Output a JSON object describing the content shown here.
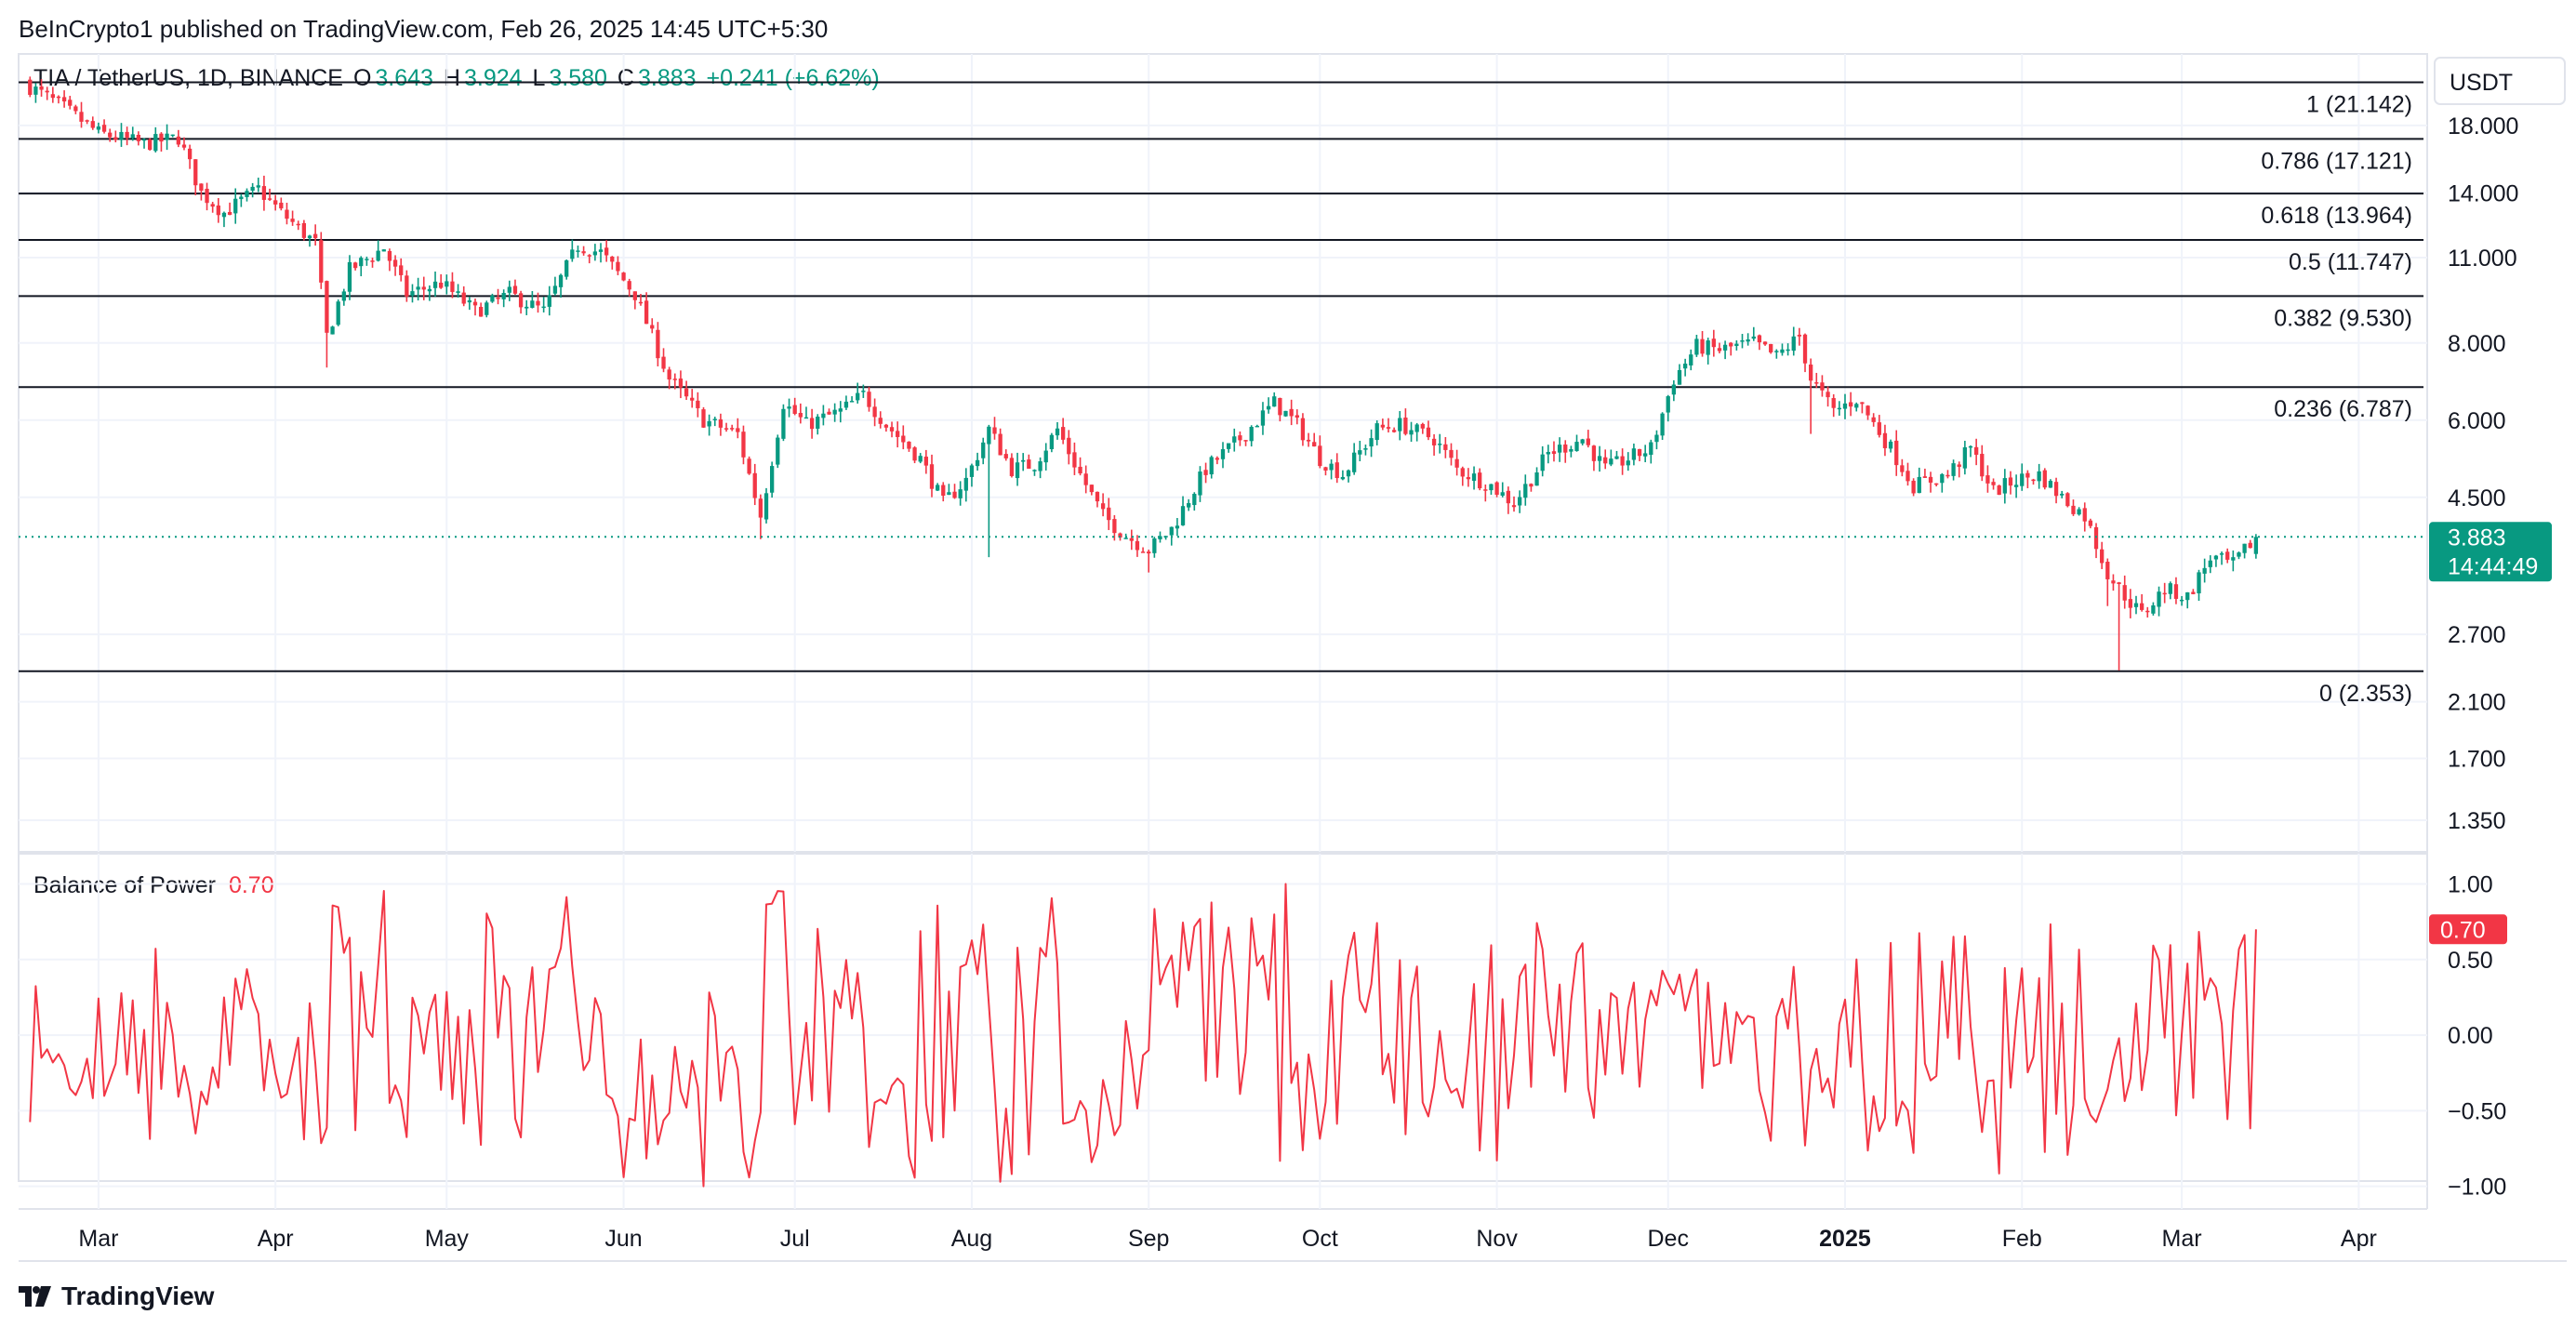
{
  "header": {
    "published": "BeInCrypto1 published on TradingView.com, Feb 26, 2025 14:45 UTC+5:30"
  },
  "legend": {
    "symbol": "TIA / TetherUS, 1D, BINANCE",
    "o_label": "O",
    "o_value": "3.643",
    "h_label": "H",
    "h_value": "3.924",
    "l_label": "L",
    "l_value": "3.580",
    "c_label": "C",
    "c_value": "3.883",
    "change": "+0.241 (+6.62%)"
  },
  "currency": "USDT",
  "last_price": {
    "value": "3.883",
    "time": "14:44:49"
  },
  "indicator": {
    "name": "Balance of Power",
    "value": "0.70"
  },
  "brand": {
    "name": "TradingView"
  },
  "colors": {
    "up": "#089981",
    "down": "#f23645",
    "bop": "#f23645",
    "text": "#131722",
    "grid": "#f0f3fa"
  },
  "chart_data": [
    {
      "type": "candlestick",
      "title": "TIA / TetherUS, 1D, BINANCE",
      "y_scale": "log",
      "ylim": [
        1.2,
        23.5
      ],
      "y_ticks": [
        {
          "value": 18.0,
          "label": "18.000"
        },
        {
          "value": 14.0,
          "label": "14.000"
        },
        {
          "value": 11.0,
          "label": "11.000"
        },
        {
          "value": 8.0,
          "label": "8.000"
        },
        {
          "value": 6.0,
          "label": "6.000"
        },
        {
          "value": 4.5,
          "label": "4.500"
        },
        {
          "value": 2.7,
          "label": "2.700"
        },
        {
          "value": 2.1,
          "label": "2.100"
        },
        {
          "value": 1.7,
          "label": "1.700"
        },
        {
          "value": 1.35,
          "label": "1.350"
        }
      ],
      "x_ticks": [
        {
          "label": "Mar",
          "day": 12
        },
        {
          "label": "Apr",
          "day": 43
        },
        {
          "label": "May",
          "day": 73
        },
        {
          "label": "Jun",
          "day": 104
        },
        {
          "label": "Jul",
          "day": 134
        },
        {
          "label": "Aug",
          "day": 165
        },
        {
          "label": "Sep",
          "day": 196
        },
        {
          "label": "Oct",
          "day": 226
        },
        {
          "label": "Nov",
          "day": 257
        },
        {
          "label": "Dec",
          "day": 287
        },
        {
          "label": "2025",
          "day": 318,
          "bold": true
        },
        {
          "label": "Feb",
          "day": 349
        },
        {
          "label": "Mar",
          "day": 377
        },
        {
          "label": "Apr",
          "day": 408
        }
      ],
      "fib_levels": [
        {
          "ratio": "1",
          "price": 21.142,
          "label": "1 (21.142)"
        },
        {
          "ratio": "0.786",
          "price": 17.121,
          "label": "0.786 (17.121)"
        },
        {
          "ratio": "0.618",
          "price": 13.964,
          "label": "0.618 (13.964)"
        },
        {
          "ratio": "0.5",
          "price": 11.747,
          "label": "0.5 (11.747)"
        },
        {
          "ratio": "0.382",
          "price": 9.53,
          "label": "0.382 (9.530)"
        },
        {
          "ratio": "0.236",
          "price": 6.787,
          "label": "0.236 (6.787)"
        },
        {
          "ratio": "0",
          "price": 2.353,
          "label": "0 (2.353)"
        }
      ],
      "last_price": 3.883,
      "total_days": 377,
      "close_anchors": [
        [
          0,
          20.8
        ],
        [
          6,
          19.2
        ],
        [
          12,
          17.5
        ],
        [
          20,
          16.8
        ],
        [
          26,
          17.2
        ],
        [
          30,
          14.0
        ],
        [
          34,
          13.0
        ],
        [
          40,
          14.2
        ],
        [
          44,
          13.0
        ],
        [
          50,
          11.6
        ],
        [
          52,
          8.2
        ],
        [
          56,
          10.5
        ],
        [
          62,
          11.4
        ],
        [
          66,
          9.6
        ],
        [
          72,
          10.0
        ],
        [
          78,
          9.0
        ],
        [
          84,
          9.6
        ],
        [
          90,
          9.0
        ],
        [
          96,
          11.5
        ],
        [
          100,
          11.2
        ],
        [
          106,
          9.6
        ],
        [
          112,
          7.0
        ],
        [
          118,
          6.0
        ],
        [
          124,
          5.7
        ],
        [
          128,
          4.2
        ],
        [
          132,
          6.4
        ],
        [
          136,
          5.9
        ],
        [
          142,
          6.2
        ],
        [
          146,
          6.6
        ],
        [
          150,
          5.9
        ],
        [
          156,
          5.2
        ],
        [
          160,
          4.4
        ],
        [
          164,
          4.8
        ],
        [
          168,
          5.8
        ],
        [
          172,
          5.0
        ],
        [
          176,
          5.1
        ],
        [
          180,
          5.8
        ],
        [
          184,
          4.9
        ],
        [
          188,
          4.2
        ],
        [
          192,
          3.9
        ],
        [
          196,
          3.7
        ],
        [
          200,
          4.0
        ],
        [
          206,
          5.0
        ],
        [
          212,
          5.6
        ],
        [
          218,
          6.4
        ],
        [
          222,
          5.9
        ],
        [
          226,
          5.2
        ],
        [
          230,
          4.9
        ],
        [
          236,
          5.8
        ],
        [
          240,
          5.9
        ],
        [
          246,
          5.6
        ],
        [
          250,
          5.0
        ],
        [
          256,
          4.7
        ],
        [
          260,
          4.4
        ],
        [
          266,
          5.3
        ],
        [
          272,
          5.6
        ],
        [
          276,
          5.0
        ],
        [
          280,
          5.2
        ],
        [
          284,
          5.4
        ],
        [
          288,
          7.0
        ],
        [
          292,
          7.9
        ],
        [
          296,
          7.8
        ],
        [
          302,
          8.0
        ],
        [
          306,
          7.6
        ],
        [
          310,
          8.2
        ],
        [
          312,
          7.0
        ],
        [
          316,
          6.2
        ],
        [
          320,
          6.5
        ],
        [
          326,
          5.4
        ],
        [
          330,
          4.7
        ],
        [
          336,
          4.9
        ],
        [
          340,
          5.4
        ],
        [
          344,
          4.6
        ],
        [
          348,
          4.8
        ],
        [
          352,
          4.9
        ],
        [
          356,
          4.5
        ],
        [
          360,
          4.2
        ],
        [
          364,
          3.4
        ],
        [
          366,
          3.2
        ],
        [
          370,
          2.9
        ],
        [
          374,
          3.2
        ],
        [
          378,
          3.1
        ],
        [
          382,
          3.6
        ],
        [
          386,
          3.5
        ],
        [
          390,
          3.883
        ]
      ],
      "special_wicks": [
        {
          "day": 52,
          "low": 7.3
        },
        {
          "day": 128,
          "low": 3.85
        },
        {
          "day": 168,
          "low": 3.6
        },
        {
          "day": 196,
          "low": 3.4
        },
        {
          "day": 312,
          "low": 5.7
        },
        {
          "day": 364,
          "low": 3.0
        },
        {
          "day": 366,
          "low": 2.36
        }
      ]
    },
    {
      "type": "line",
      "title": "Balance of Power",
      "ylim": [
        -1.15,
        1.2
      ],
      "y_ticks": [
        {
          "value": 1.0,
          "label": "1.00"
        },
        {
          "value": 0.5,
          "label": "0.50"
        },
        {
          "value": 0.0,
          "label": "0.00"
        },
        {
          "value": -0.5,
          "label": "−0.50"
        },
        {
          "value": -1.0,
          "label": "−1.00"
        }
      ],
      "last_value": 0.7,
      "amplitude": [
        [
          0,
          0.6
        ],
        [
          90,
          0.85
        ],
        [
          170,
          0.95
        ],
        [
          270,
          0.8
        ],
        [
          285,
          0.4
        ],
        [
          300,
          0.55
        ],
        [
          320,
          0.9
        ],
        [
          360,
          0.7
        ],
        [
          390,
          0.8
        ]
      ]
    }
  ]
}
